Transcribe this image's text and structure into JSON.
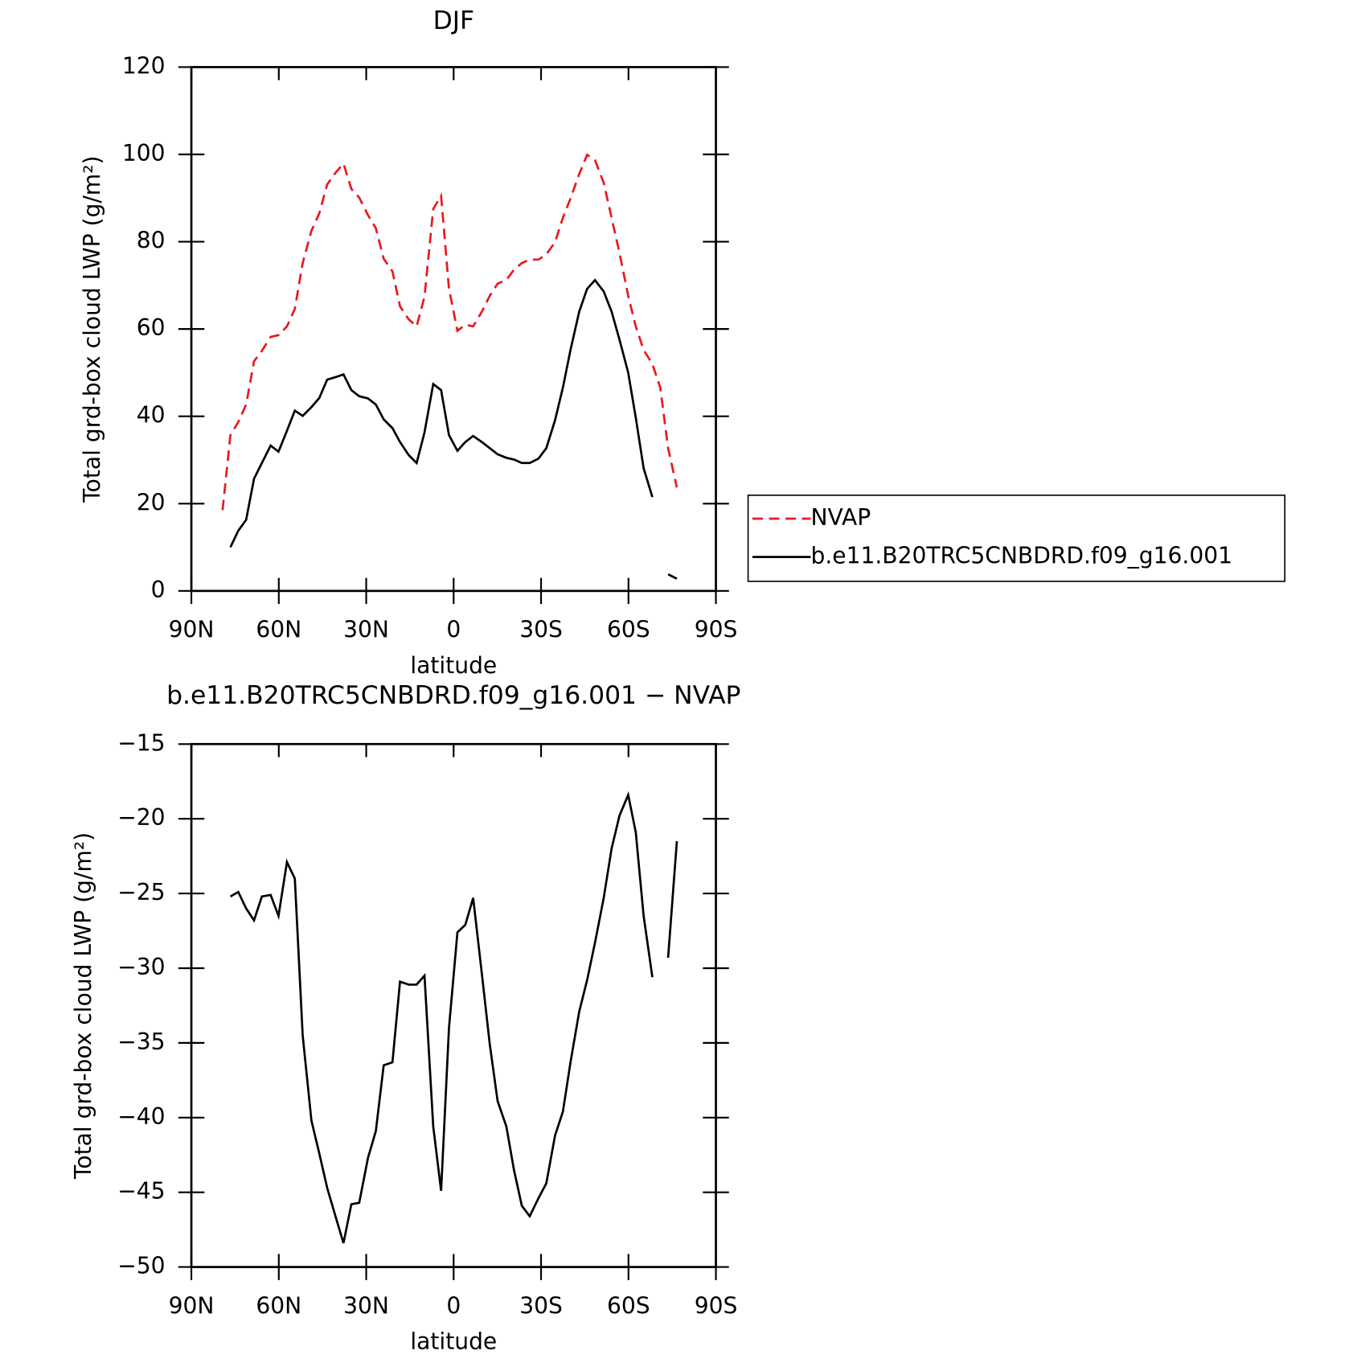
{
  "chart_data": [
    {
      "type": "line",
      "title": "DJF",
      "xlabel": "latitude",
      "ylabel": "Total grd-box cloud LWP (g/m²)",
      "xlim": [
        90,
        -90
      ],
      "xticks": [
        {
          "value": 90,
          "label": "90N"
        },
        {
          "value": 60,
          "label": "60N"
        },
        {
          "value": 30,
          "label": "30N"
        },
        0,
        {
          "value": -30,
          "label": "30S"
        },
        {
          "value": -60,
          "label": "60S"
        },
        {
          "value": -90,
          "label": "90S"
        }
      ],
      "ylim": [
        0,
        120
      ],
      "yticks": [
        0,
        20,
        40,
        60,
        80,
        100,
        120
      ],
      "legend": "right",
      "x": [
        79.3,
        76.6,
        73.9,
        71.2,
        68.5,
        65.8,
        62.8,
        60.1,
        57.2,
        54.5,
        51.8,
        48.8,
        46.1,
        43.4,
        40.4,
        37.8,
        35.1,
        32.4,
        29.4,
        26.7,
        24.0,
        21.0,
        18.4,
        15.4,
        12.7,
        10.0,
        7.0,
        4.3,
        1.6,
        -1.3,
        -4.0,
        -6.7,
        -9.7,
        -12.4,
        -15.1,
        -18.1,
        -20.7,
        -23.4,
        -26.1,
        -29.1,
        -31.8,
        -34.8,
        -37.5,
        -40.1,
        -43.1,
        -45.8,
        -48.5,
        -51.5,
        -54.2,
        -56.9,
        -59.9,
        -62.5,
        -65.2,
        -68.2,
        -70.9,
        -73.6,
        -76.6
      ],
      "series": [
        {
          "name": "NVAP",
          "color": "#e8191c",
          "dash": "dashed",
          "values": [
            18.5,
            35.7,
            38.7,
            42.7,
            52.6,
            55.0,
            58.2,
            58.6,
            60.6,
            64.6,
            75.1,
            82.5,
            86.5,
            93.1,
            95.9,
            97.9,
            92.1,
            90.1,
            86.1,
            83.1,
            76.1,
            73.2,
            65.2,
            62.2,
            60.6,
            67.4,
            87.5,
            90.5,
            69.2,
            59.6,
            61.0,
            60.6,
            64.0,
            67.6,
            70.4,
            71.2,
            73.6,
            75.1,
            75.9,
            75.9,
            77.1,
            79.9,
            85.5,
            89.9,
            95.5,
            99.9,
            98.7,
            93.5,
            85.5,
            77.5,
            67.6,
            60.6,
            55.2,
            52.0,
            46.6,
            32.7,
            23.7
          ]
        },
        {
          "name": "b.e11.B20TRC5CNBDRD.f09_g16.001",
          "color": "#000000",
          "dash": "solid",
          "values": [
            null,
            10.0,
            13.8,
            16.3,
            25.7,
            29.3,
            33.3,
            31.9,
            36.7,
            41.3,
            40.1,
            42.1,
            44.2,
            48.4,
            49.0,
            49.6,
            46.0,
            44.6,
            44.1,
            42.7,
            39.3,
            37.3,
            34.1,
            31.1,
            29.3,
            36.3,
            47.4,
            46.0,
            35.7,
            32.1,
            34.1,
            35.5,
            34.1,
            32.7,
            31.3,
            30.5,
            30.1,
            29.3,
            29.3,
            30.3,
            32.7,
            39.1,
            46.6,
            55.2,
            64.0,
            69.2,
            71.2,
            68.6,
            64.0,
            57.6,
            50.0,
            39.7,
            28.1,
            21.5,
            null,
            3.8,
            2.8
          ]
        }
      ]
    },
    {
      "type": "line",
      "title": "b.e11.B20TRC5CNBDRD.f09_g16.001 − NVAP",
      "xlabel": "latitude",
      "ylabel": "Total grd-box cloud LWP (g/m²)",
      "xlim": [
        90,
        -90
      ],
      "xticks": [
        {
          "value": 90,
          "label": "90N"
        },
        {
          "value": 60,
          "label": "60N"
        },
        {
          "value": 30,
          "label": "30N"
        },
        0,
        {
          "value": -30,
          "label": "30S"
        },
        {
          "value": -60,
          "label": "60S"
        },
        {
          "value": -90,
          "label": "90S"
        }
      ],
      "ylim": [
        -50,
        -15
      ],
      "yticks": [
        {
          "value": -50,
          "label": "−50"
        },
        {
          "value": -45,
          "label": "−45"
        },
        {
          "value": -40,
          "label": "−40"
        },
        {
          "value": -35,
          "label": "−35"
        },
        {
          "value": -30,
          "label": "−30"
        },
        {
          "value": -25,
          "label": "−25"
        },
        {
          "value": -20,
          "label": "−20"
        },
        {
          "value": -15,
          "label": "−15"
        }
      ],
      "x": [
        76.6,
        73.9,
        71.2,
        68.5,
        65.8,
        62.8,
        60.1,
        57.2,
        54.5,
        51.8,
        48.8,
        46.1,
        43.4,
        40.4,
        37.8,
        35.1,
        32.4,
        29.4,
        26.7,
        24.0,
        21.0,
        18.4,
        15.4,
        12.7,
        10.0,
        7.0,
        4.3,
        1.6,
        -1.3,
        -4.0,
        -6.7,
        -9.7,
        -12.4,
        -15.1,
        -18.1,
        -20.7,
        -23.4,
        -26.1,
        -29.1,
        -31.8,
        -34.8,
        -37.5,
        -40.1,
        -43.1,
        -45.8,
        -48.5,
        -51.5,
        -54.2,
        -56.9,
        -59.9,
        -62.5,
        -65.2,
        -68.2,
        -70.9,
        -73.6,
        -76.6
      ],
      "series": [
        {
          "color": "#000000",
          "dash": "solid",
          "values": [
            -25.2,
            -24.9,
            -26.0,
            -26.8,
            -25.2,
            -25.1,
            -26.5,
            -22.9,
            -24.0,
            -34.5,
            -40.2,
            -42.4,
            -44.7,
            -46.7,
            -48.4,
            -45.8,
            -45.7,
            -42.7,
            -40.9,
            -36.5,
            -36.3,
            -30.9,
            -31.1,
            -31.1,
            -30.5,
            -40.6,
            -44.9,
            -34.0,
            -27.6,
            -27.1,
            -25.3,
            -30.4,
            -35.1,
            -38.9,
            -40.6,
            -43.5,
            -45.9,
            -46.6,
            -45.4,
            -44.4,
            -41.2,
            -39.6,
            -36.3,
            -32.9,
            -30.8,
            -28.3,
            -25.3,
            -22.0,
            -19.8,
            -18.4,
            -20.9,
            -26.5,
            -30.6,
            null,
            -29.3,
            -21.5
          ]
        }
      ]
    }
  ]
}
